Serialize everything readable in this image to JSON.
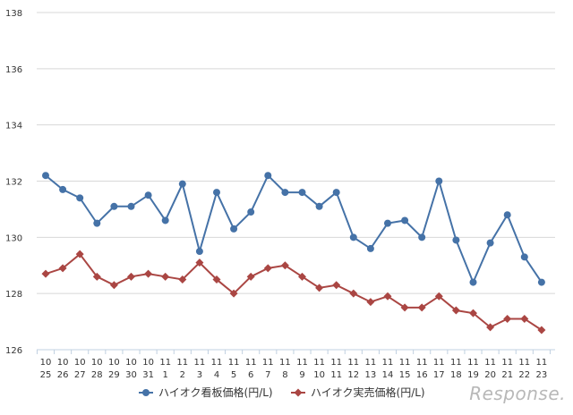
{
  "chart_data": {
    "type": "line",
    "categories": [
      [
        "10",
        "25"
      ],
      [
        "10",
        "26"
      ],
      [
        "10",
        "27"
      ],
      [
        "10",
        "28"
      ],
      [
        "10",
        "29"
      ],
      [
        "10",
        "30"
      ],
      [
        "10",
        "31"
      ],
      [
        "11",
        "1"
      ],
      [
        "11",
        "2"
      ],
      [
        "11",
        "3"
      ],
      [
        "11",
        "4"
      ],
      [
        "11",
        "5"
      ],
      [
        "11",
        "6"
      ],
      [
        "11",
        "7"
      ],
      [
        "11",
        "8"
      ],
      [
        "11",
        "9"
      ],
      [
        "11",
        "10"
      ],
      [
        "11",
        "11"
      ],
      [
        "11",
        "12"
      ],
      [
        "11",
        "13"
      ],
      [
        "11",
        "14"
      ],
      [
        "11",
        "15"
      ],
      [
        "11",
        "16"
      ],
      [
        "11",
        "17"
      ],
      [
        "11",
        "18"
      ],
      [
        "11",
        "19"
      ],
      [
        "11",
        "20"
      ],
      [
        "11",
        "21"
      ],
      [
        "11",
        "22"
      ],
      [
        "11",
        "23"
      ]
    ],
    "series": [
      {
        "name": "ハイオク看板価格(円/L)",
        "color": "#4572a7",
        "marker": "circle",
        "values": [
          132.2,
          131.7,
          131.4,
          130.5,
          131.1,
          131.1,
          131.5,
          130.6,
          131.9,
          129.5,
          131.6,
          130.3,
          130.9,
          132.2,
          131.6,
          131.6,
          131.1,
          131.6,
          130.0,
          129.6,
          130.5,
          130.6,
          130.0,
          132.0,
          129.9,
          128.4,
          129.8,
          130.8,
          129.3,
          128.4
        ]
      },
      {
        "name": "ハイオク実売価格(円/L)",
        "color": "#aa4643",
        "marker": "diamond",
        "values": [
          128.7,
          128.9,
          129.4,
          128.6,
          128.3,
          128.6,
          128.7,
          128.6,
          128.5,
          129.1,
          128.5,
          128.0,
          128.6,
          128.9,
          129.0,
          128.6,
          128.2,
          128.3,
          128.0,
          127.7,
          127.9,
          127.5,
          127.5,
          127.9,
          127.4,
          127.3,
          126.8,
          127.1,
          127.1,
          126.7
        ]
      }
    ],
    "yticks": [
      "126",
      "128",
      "130",
      "132",
      "134",
      "136",
      "138"
    ],
    "ylim": [
      126,
      138
    ],
    "grid": true,
    "legend": "bottom",
    "title": "",
    "xlabel": "",
    "ylabel": ""
  },
  "watermark": "Response."
}
